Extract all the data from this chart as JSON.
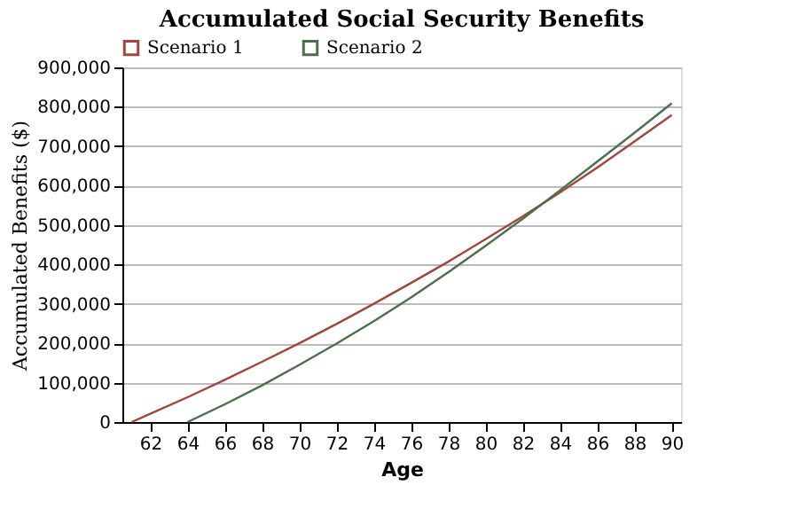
{
  "chart_data": {
    "type": "line",
    "title": "Accumulated Social Security Benefits",
    "xlabel": "Age",
    "ylabel": "Accumulated Benefits ($)",
    "xlim": [
      60.5,
      90.5
    ],
    "xticks": [
      62,
      64,
      66,
      68,
      70,
      72,
      74,
      76,
      78,
      80,
      82,
      84,
      86,
      88,
      90
    ],
    "ylim": [
      0,
      900000
    ],
    "yticks": [
      0,
      {
        "value": 100000,
        "label": "100,000"
      },
      {
        "value": 200000,
        "label": "200,000"
      },
      {
        "value": 300000,
        "label": "300,000"
      },
      {
        "value": 400000,
        "label": "400,000"
      },
      {
        "value": 500000,
        "label": "500,000"
      },
      {
        "value": 600000,
        "label": "600,000"
      },
      {
        "value": 700000,
        "label": "700,000"
      },
      {
        "value": 800000,
        "label": "800,000"
      },
      {
        "value": 900000,
        "label": "900,000"
      }
    ],
    "grid": "y",
    "legend": "top left",
    "marker": "none",
    "line_style": "solid",
    "series": [
      {
        "name": "Scenario 1",
        "color": "#a0463c",
        "x": [
          61,
          62,
          64,
          66,
          68,
          70,
          72,
          74,
          76,
          78,
          80,
          82,
          84,
          86,
          88,
          90
        ],
        "values": [
          0,
          21000,
          63000,
          107000,
          153000,
          200000,
          249000,
          300000,
          353000,
          407000,
          464000,
          522000,
          583000,
          646000,
          712000,
          779000
        ]
      },
      {
        "name": "Scenario 2",
        "color": "#4b6e4b",
        "x": [
          64,
          66,
          68,
          70,
          72,
          74,
          76,
          78,
          80,
          82,
          84,
          86,
          88,
          90
        ],
        "values": [
          0,
          45000,
          93000,
          145000,
          199000,
          256000,
          316000,
          380000,
          447000,
          516000,
          588000,
          661000,
          734000,
          809000
        ]
      }
    ]
  }
}
